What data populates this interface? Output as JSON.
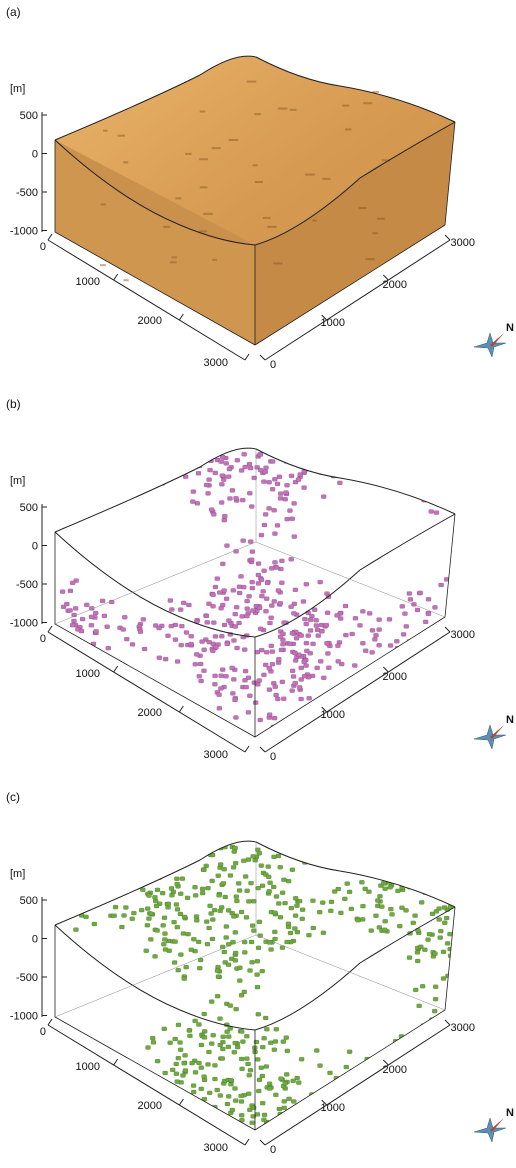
{
  "panels": [
    {
      "label": "(a)",
      "unit": "[m]",
      "z_ticks": [
        "500",
        "0",
        "-500",
        "-1000"
      ],
      "left_ticks": [
        "0",
        "1000",
        "2000",
        "3000"
      ],
      "right_ticks": [
        "0",
        "1000",
        "2000",
        "3000"
      ],
      "north": "N"
    },
    {
      "label": "(b)",
      "unit": "[m]",
      "z_ticks": [
        "500",
        "0",
        "-500",
        "-1000"
      ],
      "left_ticks": [
        "0",
        "1000",
        "2000",
        "3000"
      ],
      "right_ticks": [
        "0",
        "1000",
        "2000",
        "3000"
      ],
      "north": "N"
    },
    {
      "label": "(c)",
      "unit": "[m]",
      "z_ticks": [
        "500",
        "0",
        "-500",
        "-1000"
      ],
      "left_ticks": [
        "0",
        "1000",
        "2000",
        "3000"
      ],
      "right_ticks": [
        "0",
        "1000",
        "2000",
        "3000"
      ],
      "north": "N"
    }
  ]
}
